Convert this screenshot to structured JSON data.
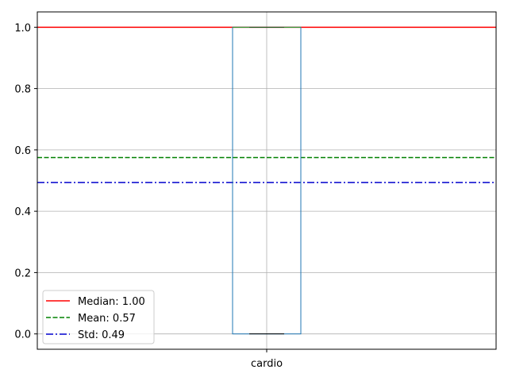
{
  "chart_data": {
    "type": "box",
    "categories": [
      "cardio"
    ],
    "box": {
      "category": "cardio",
      "q1": 0.0,
      "median": 1.0,
      "q3": 1.0,
      "whisker_low": 0.0,
      "whisker_high": 1.0
    },
    "reference_lines": [
      {
        "name": "Median: 1.00",
        "value": 1.0,
        "color": "#ff0000",
        "style": "solid"
      },
      {
        "name": "Mean: 0.57",
        "value": 0.575,
        "color": "#008000",
        "style": "dashed"
      },
      {
        "name": "Std: 0.49",
        "value": 0.494,
        "color": "#0000cd",
        "style": "dashdot"
      }
    ],
    "ylim": [
      -0.05,
      1.05
    ],
    "yticks": [
      "0.0",
      "0.2",
      "0.4",
      "0.6",
      "0.8",
      "1.0"
    ],
    "grid": true,
    "legend_position": "lower-left",
    "colors": {
      "box": "#1f77b4",
      "median": "#2ca02c",
      "whisker": "#000000",
      "grid": "#b0b0b0"
    }
  }
}
